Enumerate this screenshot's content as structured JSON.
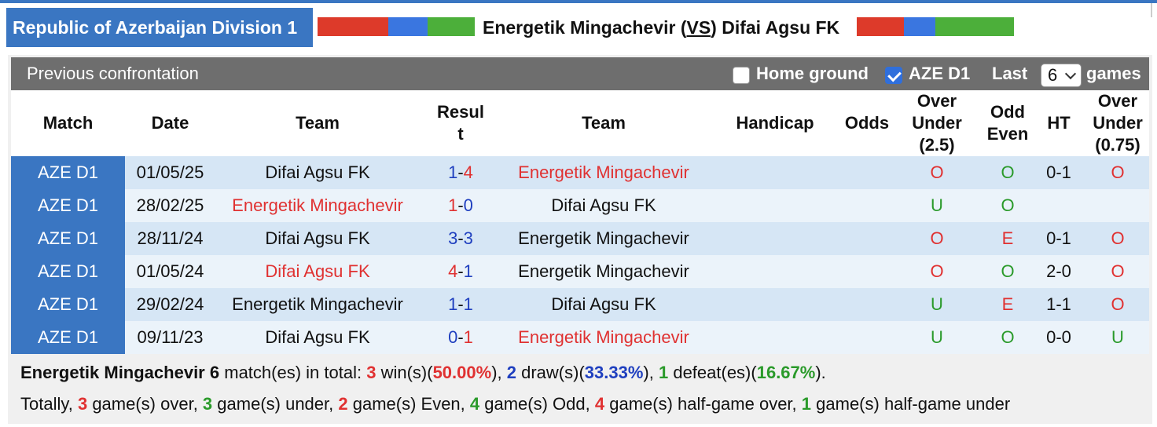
{
  "header": {
    "league": "Republic of Azerbaijan Division 1",
    "home_team": "Energetik Mingachevir",
    "vs": "VS",
    "away_team": "Difai Agsu FK",
    "bar_colors": [
      "#dd3a2a",
      "#3a76e0",
      "#4caf3a"
    ]
  },
  "panel": {
    "title": "Previous confrontation",
    "home_ground_label": "Home ground",
    "home_ground_checked": false,
    "league_filter_label": "AZE D1",
    "league_filter_checked": true,
    "last_label": "Last",
    "last_value": "6",
    "games_label": "games"
  },
  "columns": {
    "match": "Match",
    "date": "Date",
    "team1": "Team",
    "result_l1": "Resul",
    "result_l2": "t",
    "team2": "Team",
    "handicap": "Handicap",
    "odds": "Odds",
    "ou_l1": "Over",
    "ou_l2": "Under",
    "ou_l3": "(2.5)",
    "oe_l1": "Odd",
    "oe_l2": "Even",
    "ht": "HT",
    "hou_l1": "Over",
    "hou_l2": "Under",
    "hou_l3": "(0.75)"
  },
  "rows": [
    {
      "league": "AZE D1",
      "date": "01/05/25",
      "home": "Difai Agsu FK",
      "home_color": "dark",
      "hs": "1",
      "sep": "-",
      "as": "4",
      "hs_color": "blue",
      "as_color": "red",
      "away": "Energetik Mingachevir",
      "away_color": "red",
      "ou": "O",
      "ou_color": "red",
      "oe": "O",
      "oe_color": "green",
      "ht": "0-1",
      "hou": "O",
      "hou_color": "red"
    },
    {
      "league": "AZE D1",
      "date": "28/02/25",
      "home": "Energetik Mingachevir",
      "home_color": "red",
      "hs": "1",
      "sep": "-",
      "as": "0",
      "hs_color": "red",
      "as_color": "blue",
      "away": "Difai Agsu FK",
      "away_color": "dark",
      "ou": "U",
      "ou_color": "green",
      "oe": "O",
      "oe_color": "green",
      "ht": "",
      "hou": "",
      "hou_color": "dark"
    },
    {
      "league": "AZE D1",
      "date": "28/11/24",
      "home": "Difai Agsu FK",
      "home_color": "dark",
      "hs": "3",
      "sep": "-",
      "as": "3",
      "hs_color": "blue",
      "as_color": "blue",
      "away": "Energetik Mingachevir",
      "away_color": "dark",
      "ou": "O",
      "ou_color": "red",
      "oe": "E",
      "oe_color": "red",
      "ht": "0-1",
      "hou": "O",
      "hou_color": "red"
    },
    {
      "league": "AZE D1",
      "date": "01/05/24",
      "home": "Difai Agsu FK",
      "home_color": "red",
      "hs": "4",
      "sep": "-",
      "as": "1",
      "hs_color": "red",
      "as_color": "blue",
      "away": "Energetik Mingachevir",
      "away_color": "dark",
      "ou": "O",
      "ou_color": "red",
      "oe": "O",
      "oe_color": "green",
      "ht": "2-0",
      "hou": "O",
      "hou_color": "red"
    },
    {
      "league": "AZE D1",
      "date": "29/02/24",
      "home": "Energetik Mingachevir",
      "home_color": "dark",
      "hs": "1",
      "sep": "-",
      "as": "1",
      "hs_color": "blue",
      "as_color": "blue",
      "away": "Difai Agsu FK",
      "away_color": "dark",
      "ou": "U",
      "ou_color": "green",
      "oe": "E",
      "oe_color": "red",
      "ht": "1-1",
      "hou": "O",
      "hou_color": "red"
    },
    {
      "league": "AZE D1",
      "date": "09/11/23",
      "home": "Difai Agsu FK",
      "home_color": "dark",
      "hs": "0",
      "sep": "-",
      "as": "1",
      "hs_color": "blue",
      "as_color": "red",
      "away": "Energetik Mingachevir",
      "away_color": "red",
      "ou": "U",
      "ou_color": "green",
      "oe": "O",
      "oe_color": "green",
      "ht": "0-0",
      "hou": "U",
      "hou_color": "green"
    }
  ],
  "summary": {
    "team": "Energetik Mingachevir",
    "matches": "6",
    "t_matches": " match(es) in total: ",
    "wins": "3",
    "t_wins": " win(s)(",
    "win_pct": "50.00%",
    "t_close1": "), ",
    "draws": "2",
    "t_draws": " draw(s)(",
    "draw_pct": "33.33%",
    "t_close2": "), ",
    "defeats": "1",
    "t_defeats": " defeat(es)(",
    "defeat_pct": "16.67%",
    "t_close3": ").",
    "t_totally": "Totally, ",
    "over": "3",
    "t_over": " game(s) over, ",
    "under": "3",
    "t_under": " game(s) under, ",
    "even": "2",
    "t_even": " game(s) Even, ",
    "odd": "4",
    "t_odd": " game(s) Odd, ",
    "hg_over": "4",
    "t_hg_over": " game(s) half-game over, ",
    "hg_under": "1",
    "t_hg_under": " game(s) half-game under"
  }
}
